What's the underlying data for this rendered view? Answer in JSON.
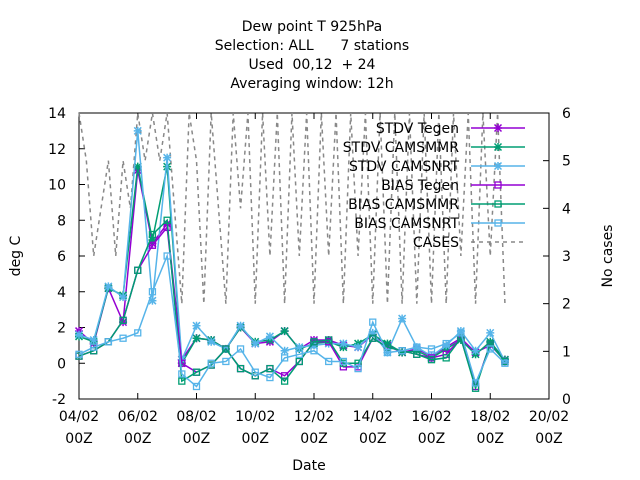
{
  "chart_data": {
    "type": "line",
    "title_lines": [
      "Dew point T 925hPa",
      "Selection: ALL      7 stations",
      "Used  00,12  + 24",
      "Averaging window: 12h"
    ],
    "xlabel": "Date",
    "ylabel": "deg C",
    "y2label": "No cases",
    "xlim": [
      0,
      16
    ],
    "ylim": [
      -2,
      14
    ],
    "y2lim": [
      0,
      6
    ],
    "x_ticks": [
      {
        "x": 0,
        "l1": "04/02",
        "l2": "00Z"
      },
      {
        "x": 2,
        "l1": "06/02",
        "l2": "00Z"
      },
      {
        "x": 4,
        "l1": "08/02",
        "l2": "00Z"
      },
      {
        "x": 6,
        "l1": "10/02",
        "l2": "00Z"
      },
      {
        "x": 8,
        "l1": "12/02",
        "l2": "00Z"
      },
      {
        "x": 10,
        "l1": "14/02",
        "l2": "00Z"
      },
      {
        "x": 12,
        "l1": "16/02",
        "l2": "00Z"
      },
      {
        "x": 14,
        "l1": "18/02",
        "l2": "00Z"
      },
      {
        "x": 16,
        "l1": "20/02",
        "l2": "00Z"
      }
    ],
    "y_ticks": [
      "-2",
      "0",
      "2",
      "4",
      "6",
      "8",
      "10",
      "12",
      "14"
    ],
    "y2_ticks": [
      "0",
      "1",
      "2",
      "3",
      "4",
      "5",
      "6"
    ],
    "grid": false,
    "legend_position": "top-right",
    "x": [
      0,
      0.5,
      1,
      1.5,
      2,
      2.5,
      3,
      3.5,
      4,
      4.5,
      5,
      5.5,
      6,
      6.5,
      7,
      7.5,
      8,
      8.5,
      9,
      9.5,
      10,
      10.5,
      11,
      11.5,
      12,
      12.5,
      13,
      13.5,
      14,
      14.5
    ],
    "series": [
      {
        "name": "STDV Tegen",
        "color": "#9400d3",
        "marker": "x",
        "dashed": false,
        "values": [
          1.8,
          1.1,
          4.2,
          2.3,
          10.8,
          6.7,
          7.8,
          0.2,
          1.4,
          1.3,
          0.8,
          2.0,
          1.1,
          1.2,
          1.8,
          0.8,
          1.3,
          1.3,
          1.0,
          0.9,
          1.6,
          1.0,
          0.6,
          0.8,
          0.4,
          0.9,
          1.4,
          0.6,
          1.0,
          0.2
        ]
      },
      {
        "name": "STDV CAMSMMR",
        "color": "#009e73",
        "marker": "x",
        "dashed": false,
        "values": [
          1.5,
          1.2,
          4.2,
          3.8,
          11.0,
          6.9,
          11.0,
          0.0,
          1.4,
          1.3,
          0.8,
          2.0,
          1.2,
          1.3,
          1.8,
          0.8,
          1.1,
          1.2,
          0.9,
          1.1,
          1.6,
          1.1,
          0.6,
          0.7,
          0.3,
          0.8,
          1.3,
          0.5,
          1.2,
          0.2
        ]
      },
      {
        "name": "STDV CAMSNRT",
        "color": "#56b4e9",
        "marker": "x",
        "dashed": false,
        "values": [
          1.6,
          1.3,
          4.3,
          3.7,
          13.0,
          3.5,
          11.5,
          0.2,
          2.1,
          1.2,
          0.8,
          2.1,
          1.1,
          1.5,
          0.7,
          0.9,
          1.0,
          1.1,
          1.1,
          0.9,
          1.7,
          0.6,
          2.5,
          0.9,
          0.4,
          1.0,
          1.8,
          0.7,
          1.7,
          0.1
        ]
      },
      {
        "name": "BIAS Tegen",
        "color": "#9400d3",
        "marker": "square",
        "dashed": false,
        "values": [
          0.4,
          0.7,
          1.2,
          2.4,
          5.2,
          6.6,
          7.6,
          0.0,
          -0.5,
          -0.1,
          0.8,
          -0.3,
          -0.7,
          -0.3,
          -0.7,
          0.1,
          1.2,
          1.2,
          -0.2,
          -0.2,
          1.4,
          0.9,
          0.7,
          0.5,
          0.3,
          0.5,
          1.4,
          -1.3,
          1.1,
          0.1
        ]
      },
      {
        "name": "BIAS CAMSMMR",
        "color": "#009e73",
        "marker": "square",
        "dashed": false,
        "values": [
          0.4,
          0.7,
          1.2,
          2.4,
          5.2,
          7.2,
          8.0,
          -1.0,
          -0.5,
          -0.1,
          0.8,
          -0.3,
          -0.7,
          -0.3,
          -1.0,
          0.1,
          1.2,
          1.3,
          0.0,
          0.0,
          1.4,
          0.9,
          0.7,
          0.5,
          0.2,
          0.3,
          1.4,
          -1.4,
          1.1,
          0.1
        ]
      },
      {
        "name": "BIAS CAMSNRT",
        "color": "#56b4e9",
        "marker": "square",
        "dashed": false,
        "values": [
          0.5,
          0.9,
          1.2,
          1.4,
          1.7,
          4.0,
          6.0,
          -0.6,
          -1.3,
          0.0,
          0.1,
          0.8,
          -0.5,
          -0.8,
          0.3,
          0.5,
          0.7,
          0.1,
          0.1,
          -0.3,
          2.3,
          0.6,
          0.7,
          0.9,
          0.8,
          1.1,
          1.7,
          -1.1,
          0.8,
          0.0
        ]
      }
    ],
    "cases": {
      "name": "CASES",
      "color": "#888888",
      "marker": "none",
      "dashed": true,
      "axis": "right",
      "x": [
        0,
        0.25,
        0.5,
        0.75,
        1,
        1.25,
        1.5,
        1.75,
        2,
        2.25,
        2.5,
        2.75,
        3,
        3.25,
        3.5,
        3.75,
        4,
        4.25,
        4.5,
        4.75,
        5,
        5.25,
        5.5,
        5.75,
        6,
        6.25,
        6.5,
        6.75,
        7,
        7.25,
        7.5,
        7.75,
        8,
        8.25,
        8.5,
        8.75,
        9,
        9.25,
        9.5,
        9.75,
        10,
        10.25,
        10.5,
        10.75,
        11,
        11.25,
        11.5,
        11.75,
        12,
        12.25,
        12.5,
        12.75,
        13,
        13.25,
        13.5,
        13.75,
        14,
        14.25,
        14.5
      ],
      "values": [
        6,
        5,
        3,
        4,
        5,
        3,
        5,
        4,
        6,
        5,
        6,
        5,
        6,
        4,
        2,
        6,
        5,
        2,
        6,
        4,
        2,
        6,
        4,
        6,
        2,
        6,
        3,
        6,
        2,
        6,
        3,
        6,
        2,
        6,
        3,
        6,
        2,
        6,
        3,
        6,
        2,
        6,
        2,
        6,
        2,
        6,
        2,
        6,
        2,
        6,
        2,
        6,
        3,
        6,
        2,
        6,
        3,
        6,
        2
      ]
    }
  }
}
